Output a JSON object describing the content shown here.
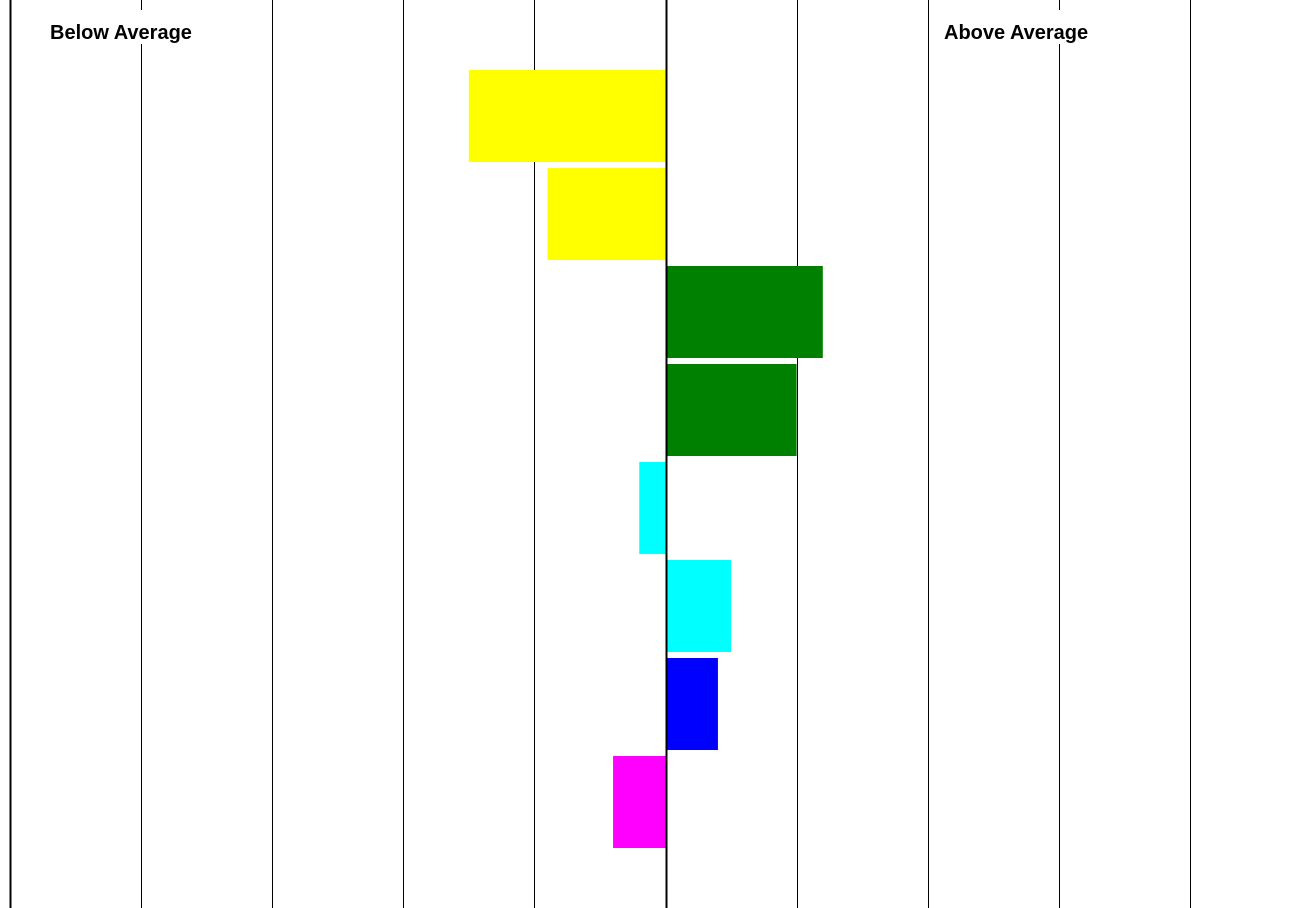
{
  "chart_data": {
    "type": "bar",
    "orientation": "horizontal",
    "left_label": "Below Average",
    "right_label": "Above Average",
    "xlim": [
      -5,
      5
    ],
    "baseline": 0,
    "grid": true,
    "bars": [
      {
        "value": -1.5,
        "color": "#FFFF00"
      },
      {
        "value": -0.9,
        "color": "#FFFF00"
      },
      {
        "value": 1.2,
        "color": "#008000"
      },
      {
        "value": 1.0,
        "color": "#008000"
      },
      {
        "value": -0.2,
        "color": "#00FFFF"
      },
      {
        "value": 0.5,
        "color": "#00FFFF"
      },
      {
        "value": 0.4,
        "color": "#0000FF"
      },
      {
        "value": -0.4,
        "color": "#FF00FF"
      }
    ]
  }
}
